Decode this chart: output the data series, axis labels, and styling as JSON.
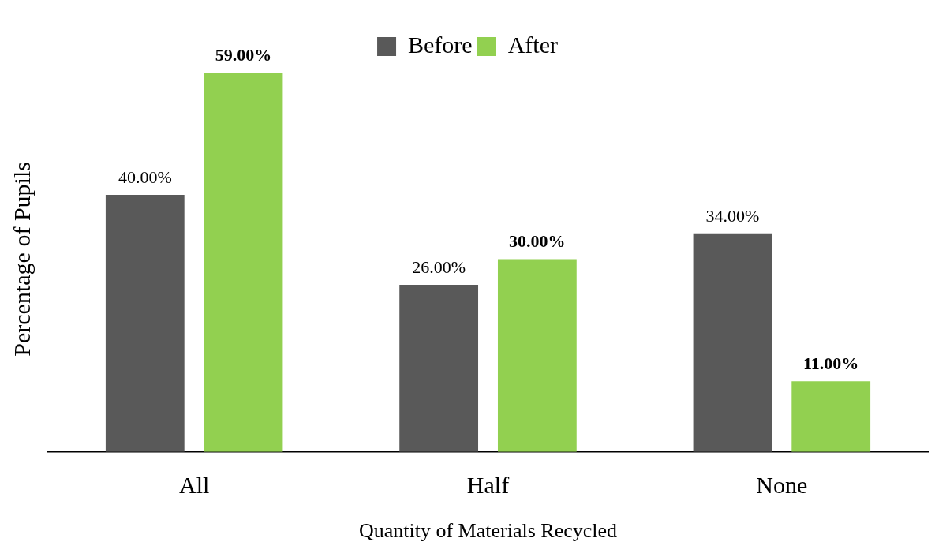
{
  "chart_data": {
    "type": "bar",
    "xlabel": "Quantity of Materials Recycled",
    "ylabel": "Percentage of Pupils",
    "categories": [
      "All",
      "Half",
      "None"
    ],
    "legend": "top",
    "series": [
      {
        "name": "Before",
        "color": "#595959",
        "values": [
          40,
          26,
          34
        ],
        "value_labels": [
          "40.00%",
          "26.00%",
          "34.00%"
        ]
      },
      {
        "name": "After",
        "color": "#92d050",
        "values": [
          59,
          30,
          11
        ],
        "value_labels": [
          "59.00%",
          "30.00%",
          "11.00%"
        ]
      }
    ]
  }
}
